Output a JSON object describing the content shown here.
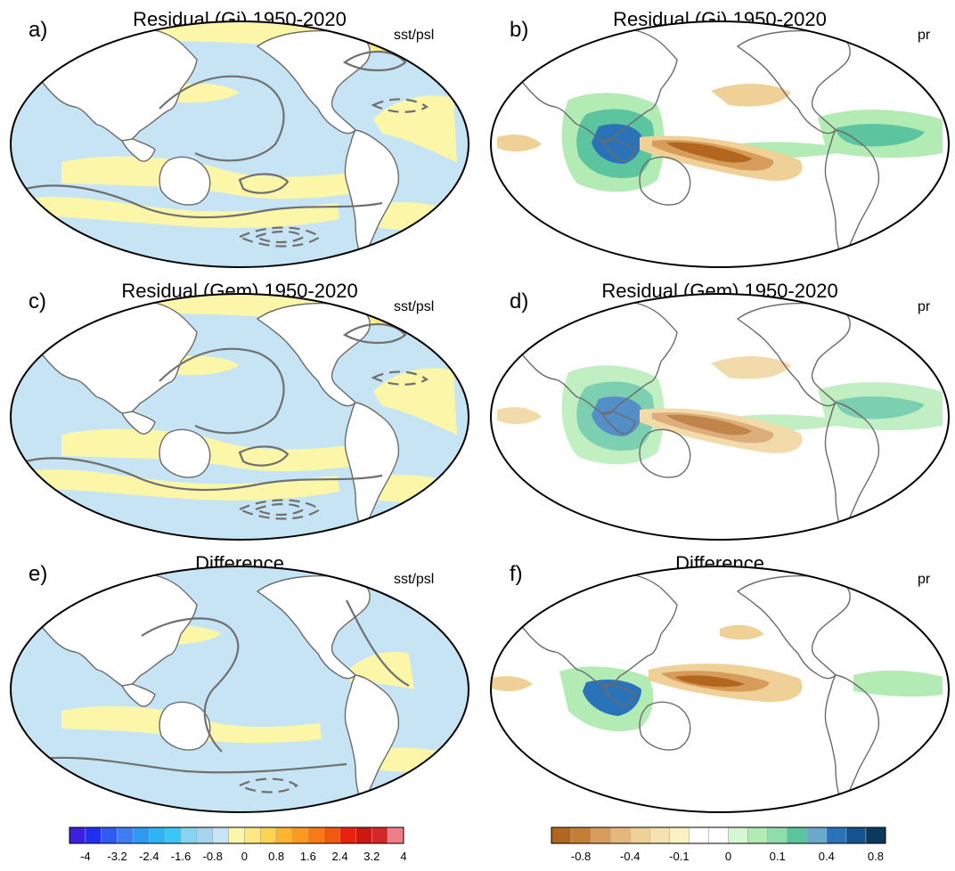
{
  "figure": {
    "colors": {
      "sst": [
        "#3a20e0",
        "#2030f0",
        "#2f5bf0",
        "#3e7ef2",
        "#2f99ef",
        "#2eb4f3",
        "#39c8f6",
        "#86d3f2",
        "#a6d4f0",
        "#c6e4f3",
        "#fcf6a9",
        "#fde983",
        "#fed252",
        "#fcb52d",
        "#fb9a1e",
        "#f77a17",
        "#f15911",
        "#e8220e",
        "#cc1812",
        "#d4272c",
        "#ee7f8a"
      ],
      "pr": [
        "#b2661f",
        "#c57e36",
        "#d79b5a",
        "#e5b77c",
        "#efd197",
        "#f4e2b0",
        "#fbf2c4",
        "#ffffff",
        "#ffffff",
        "#d6f7d4",
        "#b2ecb4",
        "#8fdcac",
        "#5cc49e",
        "#69a9c9",
        "#2a73b9",
        "#14538f",
        "#0b3a5d"
      ],
      "sea": "#c6e4f3",
      "land": "#ffffff",
      "contour": "#707070",
      "outline": "#000000"
    },
    "panels": [
      {
        "id": "a",
        "label": "a)",
        "title": "Residual (Gi) 1950-2020",
        "variable": "sst/psl",
        "kind": "sst"
      },
      {
        "id": "b",
        "label": "b)",
        "title": "Residual (Gi) 1950-2020",
        "variable": "pr",
        "kind": "pr"
      },
      {
        "id": "c",
        "label": "c)",
        "title": "Residual (Gem) 1950-2020",
        "variable": "sst/psl",
        "kind": "sst"
      },
      {
        "id": "d",
        "label": "d)",
        "title": "Residual (Gem) 1950-2020",
        "variable": "pr",
        "kind": "pr"
      },
      {
        "id": "e",
        "label": "e)",
        "title": "Difference",
        "variable": "sst/psl",
        "kind": "sst"
      },
      {
        "id": "f",
        "label": "f)",
        "title": "Difference",
        "variable": "pr",
        "kind": "pr"
      }
    ],
    "colorbars": {
      "sst": {
        "ticks": [
          "-4",
          "-3.2",
          "-2.4",
          "-1.6",
          "-0.8",
          "0",
          "0.8",
          "1.6",
          "2.4",
          "3.2",
          "4"
        ]
      },
      "pr": {
        "ticks": [
          "-0.8",
          "-0.4",
          "-0.1",
          "0",
          "0.1",
          "0.4",
          "0.8"
        ]
      }
    }
  }
}
